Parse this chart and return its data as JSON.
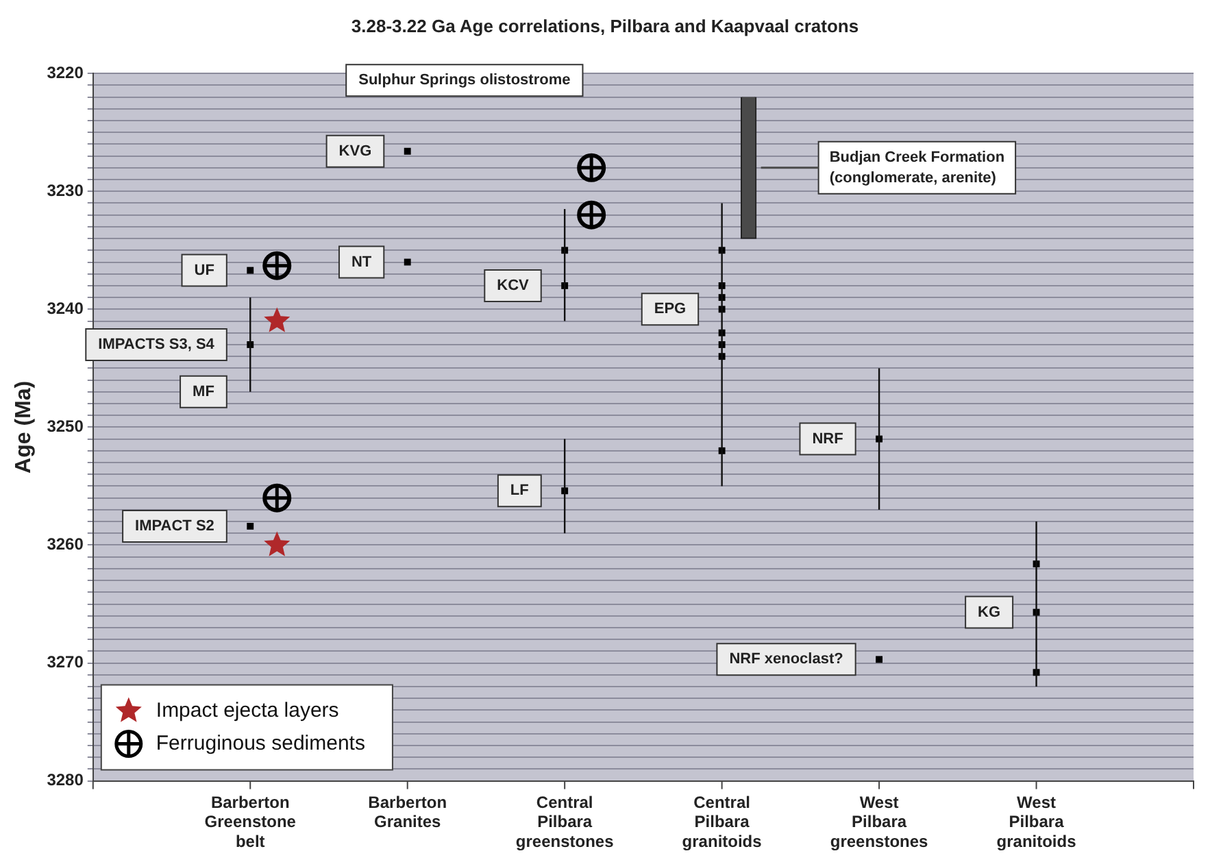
{
  "chart_data": {
    "type": "scatter",
    "title": "3.28-3.22 Ga Age correlations, Pilbara and Kaapvaal cratons",
    "ylabel": "Age (Ma)",
    "categories": [
      null,
      "Barberton Greenstone belt",
      "Barberton Granites",
      "Central Pilbara greenstones",
      "Central Pilbara granitoids",
      "West Pilbara greenstones",
      "West Pilbara granitoids",
      null
    ],
    "ylim": [
      3280,
      3220
    ],
    "yticks": [
      3220,
      {
        "value": 3221,
        "label": null
      },
      {
        "value": 3222,
        "label": null
      },
      {
        "value": 3223,
        "label": null
      },
      {
        "value": 3224,
        "label": null
      },
      {
        "value": 3225,
        "label": null
      },
      {
        "value": 3226,
        "label": null
      },
      {
        "value": 3227,
        "label": null
      },
      {
        "value": 3228,
        "label": null
      },
      {
        "value": 3229,
        "label": null
      },
      3230,
      {
        "value": 3231,
        "label": null
      },
      {
        "value": 3232,
        "label": null
      },
      {
        "value": 3233,
        "label": null
      },
      {
        "value": 3234,
        "label": null
      },
      {
        "value": 3235,
        "label": null
      },
      {
        "value": 3236,
        "label": null
      },
      {
        "value": 3237,
        "label": null
      },
      {
        "value": 3238,
        "label": null
      },
      {
        "value": 3239,
        "label": null
      },
      3240,
      {
        "value": 3241,
        "label": null
      },
      {
        "value": 3242,
        "label": null
      },
      {
        "value": 3243,
        "label": null
      },
      {
        "value": 3244,
        "label": null
      },
      {
        "value": 3245,
        "label": null
      },
      {
        "value": 3246,
        "label": null
      },
      {
        "value": 3247,
        "label": null
      },
      {
        "value": 3248,
        "label": null
      },
      {
        "value": 3249,
        "label": null
      },
      3250,
      {
        "value": 3251,
        "label": null
      },
      {
        "value": 3252,
        "label": null
      },
      {
        "value": 3253,
        "label": null
      },
      {
        "value": 3254,
        "label": null
      },
      {
        "value": 3255,
        "label": null
      },
      {
        "value": 3256,
        "label": null
      },
      {
        "value": 3257,
        "label": null
      },
      {
        "value": 3258,
        "label": null
      },
      {
        "value": 3259,
        "label": null
      },
      3260,
      {
        "value": 3261,
        "label": null
      },
      {
        "value": 3262,
        "label": null
      },
      {
        "value": 3263,
        "label": null
      },
      {
        "value": 3264,
        "label": null
      },
      {
        "value": 3265,
        "label": null
      },
      {
        "value": 3266,
        "label": null
      },
      {
        "value": 3267,
        "label": null
      },
      {
        "value": 3268,
        "label": null
      },
      {
        "value": 3269,
        "label": null
      },
      3270,
      {
        "value": 3271,
        "label": null
      },
      {
        "value": 3272,
        "label": null
      },
      {
        "value": 3273,
        "label": null
      },
      {
        "value": 3274,
        "label": null
      },
      {
        "value": 3275,
        "label": null
      },
      {
        "value": 3276,
        "label": null
      },
      {
        "value": 3277,
        "label": null
      },
      {
        "value": 3278,
        "label": null
      },
      {
        "value": 3279,
        "label": null
      },
      3280
    ],
    "grid": "y",
    "legend": "bottom left",
    "series": [
      {
        "marker": "square",
        "color": "#000000",
        "x": [
          "Barberton Greenstone belt",
          "Barberton Greenstone belt",
          "Barberton Greenstone belt",
          "Barberton Granites",
          "Barberton Granites",
          "Central Pilbara greenstones",
          "Central Pilbara greenstones",
          "Central Pilbara greenstones",
          "Central Pilbara granitoids",
          "Central Pilbara granitoids",
          "Central Pilbara granitoids",
          "Central Pilbara granitoids",
          "Central Pilbara granitoids",
          "Central Pilbara granitoids",
          "Central Pilbara granitoids",
          "Central Pilbara granitoids",
          "West Pilbara greenstones",
          "West Pilbara greenstones",
          "West Pilbara granitoids",
          "West Pilbara granitoids",
          "West Pilbara granitoids"
        ],
        "values": [
          3236.7,
          3243,
          3258.4,
          3226.6,
          3236,
          3235,
          3238,
          3255.4,
          3235,
          3238,
          3239,
          3240,
          3242,
          3243,
          3244,
          3252,
          3251,
          3269.7,
          3261.6,
          3265.7,
          3270.8
        ],
        "errors": [
          null,
          [
            3239,
            3247
          ],
          null,
          null,
          null,
          [
            3231.5,
            3241
          ],
          null,
          [
            3251,
            3259
          ],
          [
            3231,
            3255
          ],
          null,
          null,
          null,
          null,
          null,
          null,
          null,
          [
            3245,
            3257
          ],
          null,
          [
            3258,
            3272
          ],
          null,
          null
        ]
      },
      {
        "marker": "star",
        "name": "Impact ejecta layers",
        "color": "#b0282a",
        "x": [
          "Barberton Greenstone belt",
          "Barberton Greenstone belt"
        ],
        "values": [
          3241,
          3260
        ]
      },
      {
        "marker": "circle",
        "name": "Ferruginous sediments",
        "color": "#000000",
        "x": [
          "Barberton Greenstone belt",
          "Barberton Greenstone belt",
          "Central Pilbara greenstones",
          "Central Pilbara greenstones"
        ],
        "values": [
          3236.3,
          3256,
          3228,
          3232
        ]
      },
      {
        "type": "bar",
        "name": "Budjan Creek Formation (conglomerate, arenite)",
        "color": "#4a4a4a",
        "x": [
          "Central Pilbara granitoids"
        ],
        "base": [
          3222
        ],
        "values": [
          12
        ]
      }
    ],
    "annotations": [
      {
        "text": "UF",
        "x": "Barberton Greenstone belt",
        "y": 3236.7
      },
      {
        "text": "IMPACTS S3, S4",
        "x": "Barberton Greenstone belt",
        "y": 3243
      },
      {
        "text": "MF",
        "x": "Barberton Greenstone belt",
        "y": 3247
      },
      {
        "text": "IMPACT S2",
        "x": "Barberton Greenstone belt",
        "y": 3258.4
      },
      {
        "text": "KVG",
        "x": "Barberton Granites",
        "y": 3226.6
      },
      {
        "text": "NT",
        "x": "Barberton Granites",
        "y": 3236
      },
      {
        "text": "KCV",
        "x": "Central Pilbara greenstones",
        "y": 3238
      },
      {
        "text": "LF",
        "x": "Central Pilbara greenstones",
        "y": 3255.4
      },
      "Sulphur Springs olistostrome",
      {
        "text": "EPG",
        "x": "Central Pilbara granitoids",
        "y": 3240
      },
      {
        "text": "NRF",
        "x": "West Pilbara greenstones",
        "y": 3251
      },
      {
        "text": "NRF xenoclast?",
        "x": "West Pilbara greenstones",
        "y": 3269.7
      },
      {
        "text": "KG",
        "x": "West Pilbara granitoids",
        "y": 3265.7
      }
    ]
  }
}
